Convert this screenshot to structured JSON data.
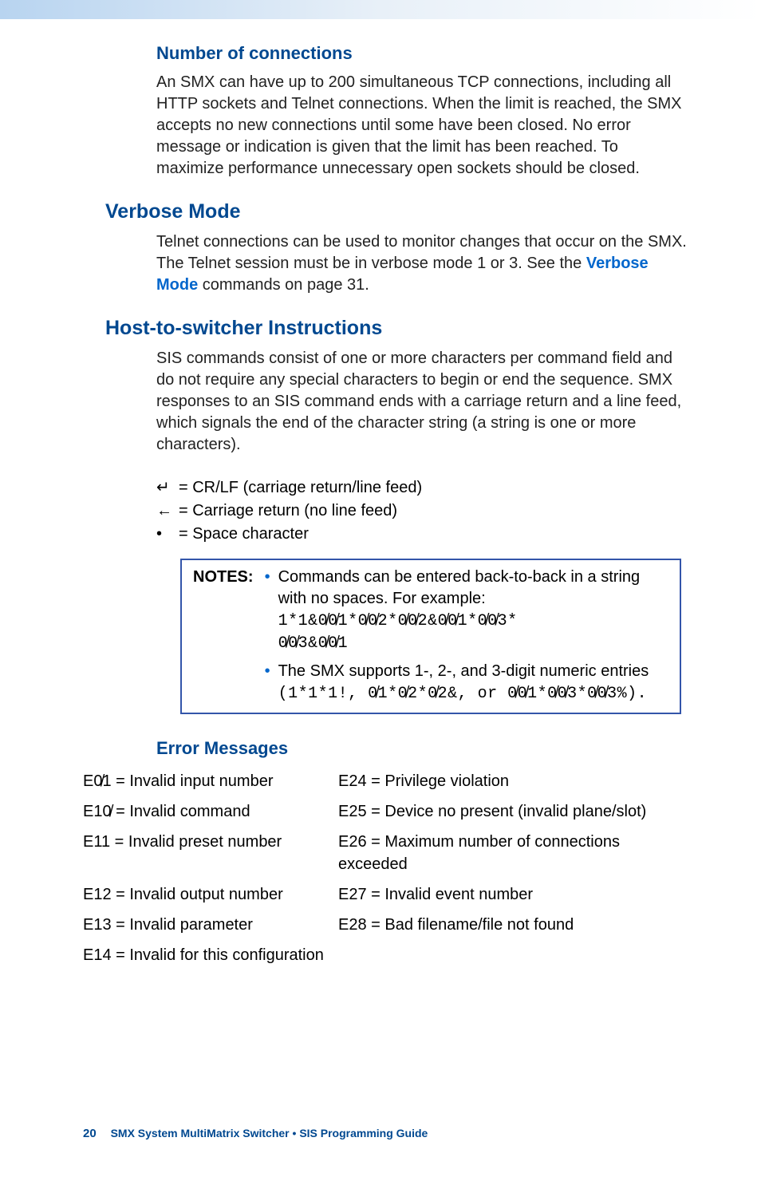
{
  "colors": {
    "heading": "#004890",
    "link": "#0066cc",
    "border": "#3355aa",
    "body": "#222222",
    "footer": "#004890"
  },
  "section1": {
    "title": "Number of connections",
    "body": "An SMX can have up to 200 simultaneous TCP connections, including all HTTP sockets and Telnet connections. When the limit is reached, the SMX accepts no new connections until some have been closed. No error message or indication is given that the limit has been reached. To maximize performance unnecessary open sockets should be closed."
  },
  "section2": {
    "title": "Verbose Mode",
    "body_pre": "Telnet connections can be used to monitor changes that occur on the SMX. The Telnet session must be in verbose mode 1 or 3. See the ",
    "body_link": "Verbose Mode",
    "body_post": " commands on page 31."
  },
  "section3": {
    "title": "Host-to-switcher Instructions",
    "body": "SIS commands consist of one or more characters per command field and do not require any special characters to begin or end the sequence. SMX responses to an SIS command ends with a carriage return and a line feed, which signals the end of the character string (a string is one or more characters).",
    "symbols": [
      {
        "glyph": "↵",
        "text": " = CR/LF (carriage return/line feed)"
      },
      {
        "glyph": "←",
        "text": " = Carriage return (no line feed)"
      },
      {
        "glyph": "•",
        "text": " = Space character"
      }
    ],
    "notes_label": "NOTES:",
    "notes": [
      {
        "text": "Commands can be entered back-to-back in a string with no spaces. For example:",
        "code1": "1*1&0̸0̸1*0̸0̸2*0̸0̸2&0̸0̸1*0̸0̸3*",
        "code2": "0̸0̸3&0̸0̸1"
      },
      {
        "text": "The SMX supports 1-, 2-, and 3-digit numeric entries ",
        "code_inline": "(1*1*1!, 0̸1*0̸2*0̸2&, or 0̸0̸1*0̸0̸3*0̸0̸3%)."
      }
    ]
  },
  "section4": {
    "title": "Error Messages",
    "rows": [
      {
        "l": "E0̸1 = Invalid input number",
        "r": "E24 = Privilege violation"
      },
      {
        "l": "E10̸ = Invalid command",
        "r": "E25 = Device no present (invalid plane/slot)"
      },
      {
        "l": "E11 = Invalid preset number",
        "r": "E26 = Maximum number of connections exceeded"
      },
      {
        "l": "E12 = Invalid output number",
        "r": "E27 = Invalid event number"
      },
      {
        "l": "E13 = Invalid parameter",
        "r": "E28 = Bad filename/file not found"
      },
      {
        "l": "E14 = Invalid for this configuration",
        "r": ""
      }
    ]
  },
  "footer": {
    "page_num": "20",
    "title": "SMX System MultiMatrix Switcher • SIS Programming Guide"
  }
}
